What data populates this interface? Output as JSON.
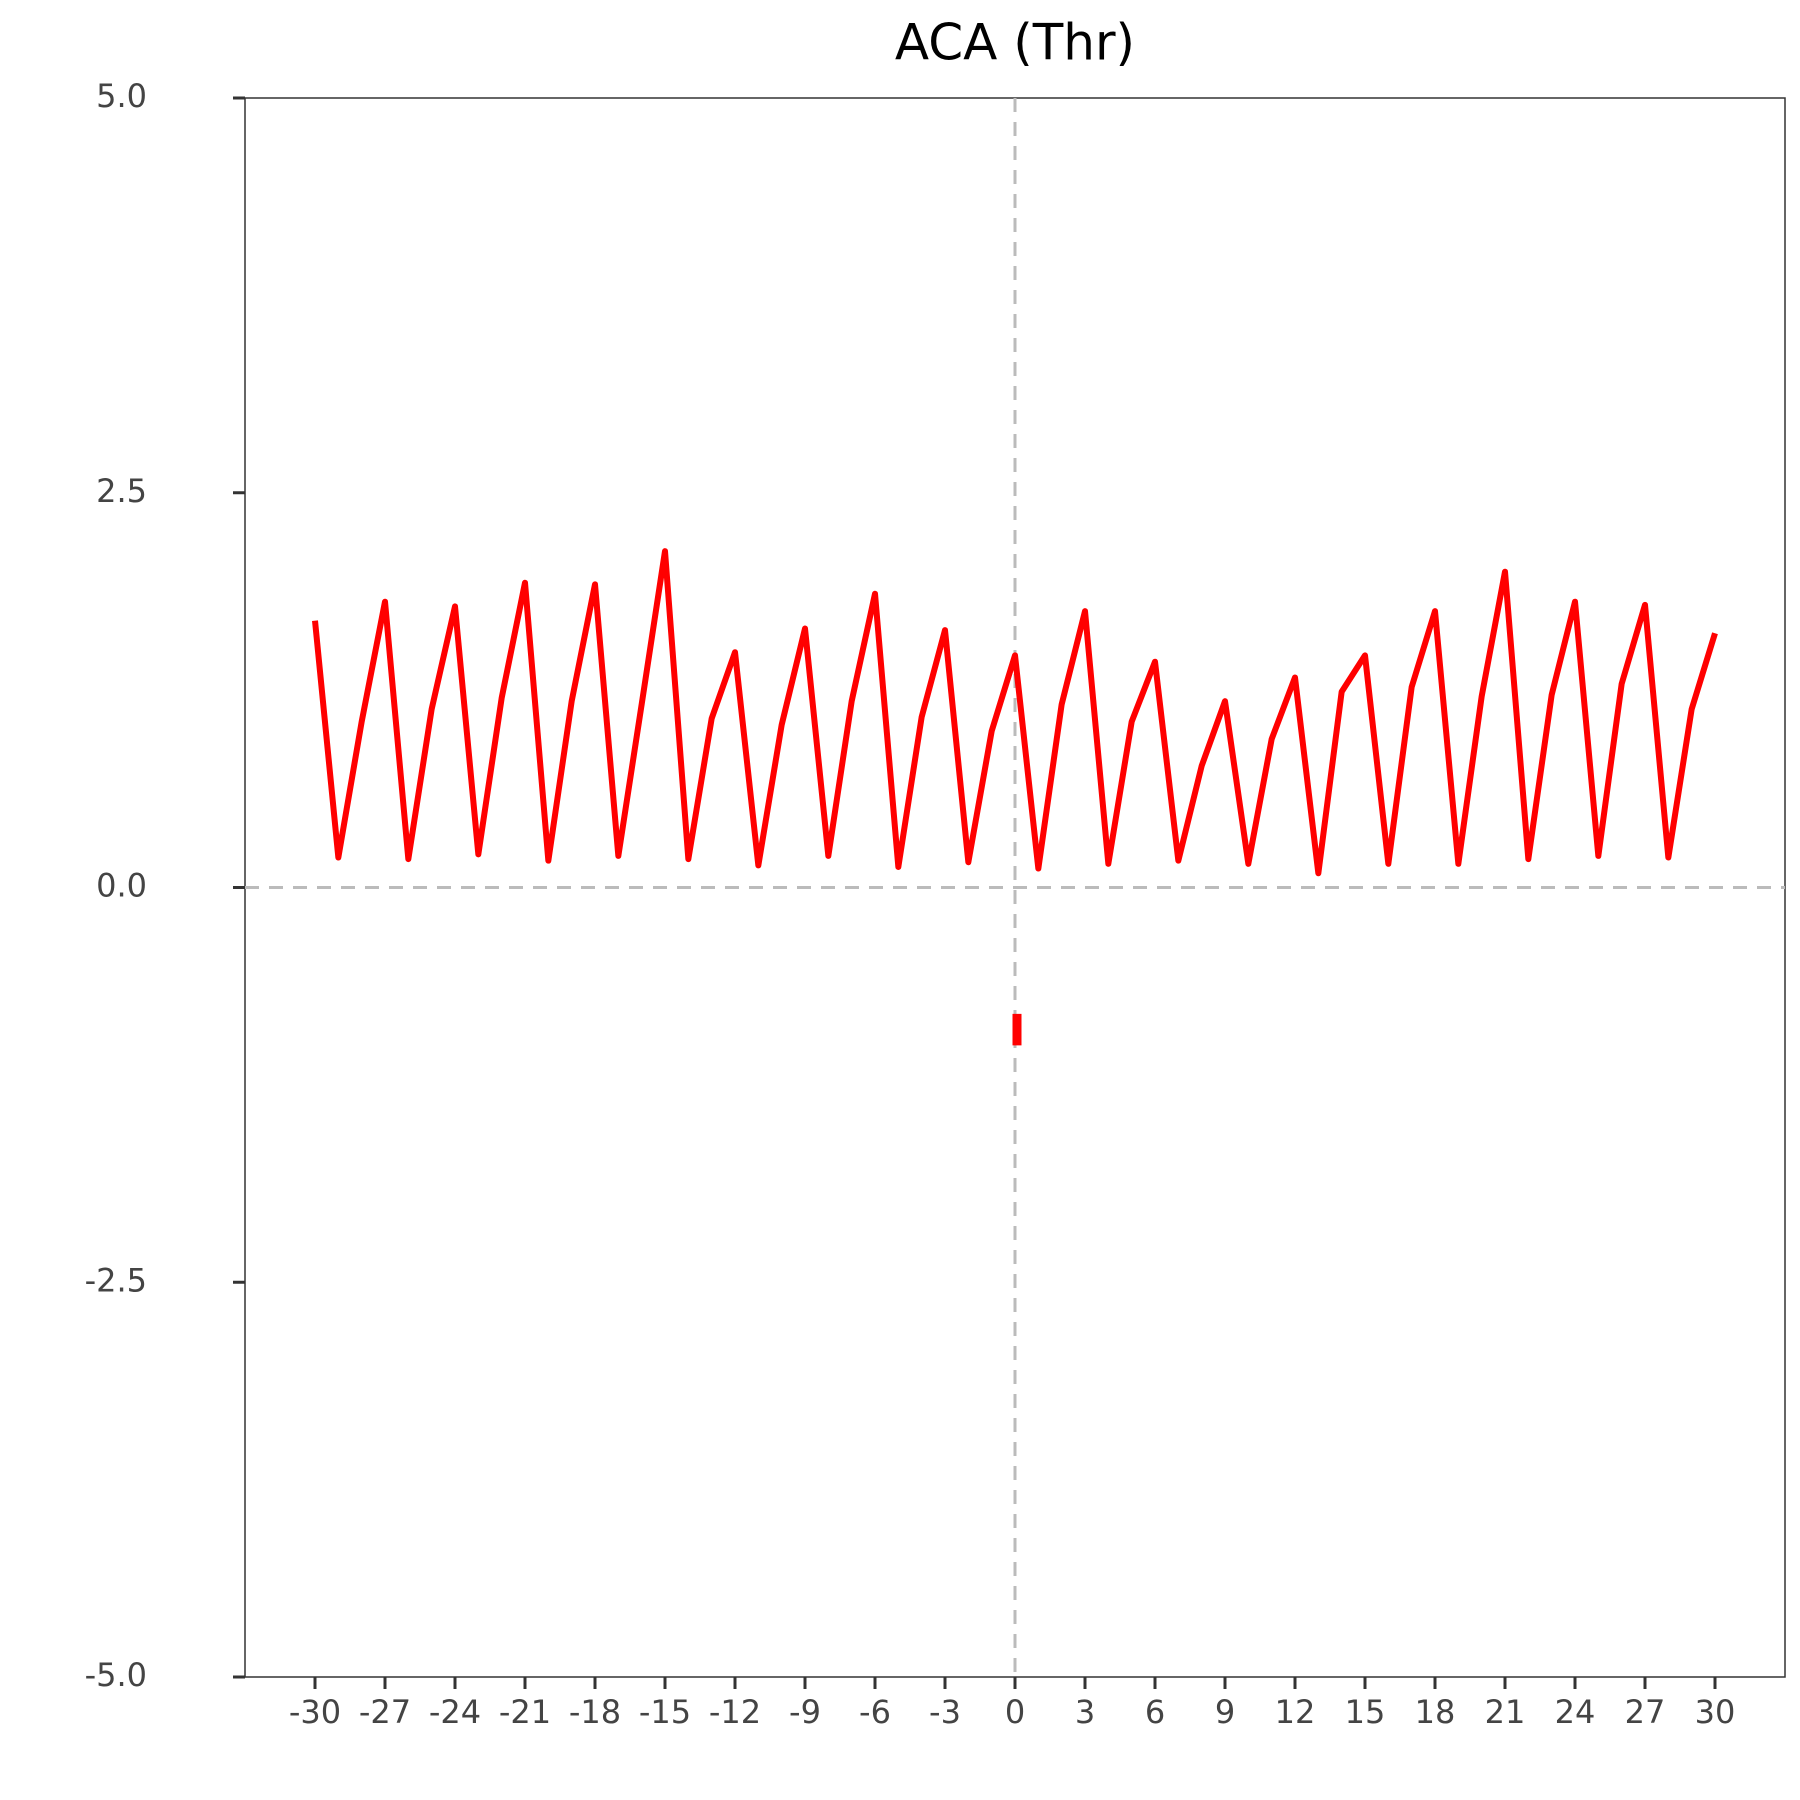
{
  "chart_data": {
    "type": "line",
    "title": "ACA (Thr)",
    "x": [
      -30,
      -29,
      -28,
      -27,
      -26,
      -25,
      -24,
      -23,
      -22,
      -21,
      -20,
      -19,
      -18,
      -17,
      -16,
      -15,
      -14,
      -13,
      -12,
      -11,
      -10,
      -9,
      -8,
      -7,
      -6,
      -5,
      -4,
      -3,
      -2,
      -1,
      0,
      1,
      2,
      3,
      4,
      5,
      6,
      7,
      8,
      9,
      10,
      11,
      12,
      13,
      14,
      15,
      16,
      17,
      18,
      19,
      20,
      21,
      22,
      23,
      24,
      25,
      26,
      27,
      28,
      29,
      30
    ],
    "series": [
      {
        "color": "#ff0000",
        "values": [
          1.69,
          0.19,
          1.05,
          1.81,
          0.18,
          1.13,
          1.78,
          0.21,
          1.2,
          1.93,
          0.17,
          1.18,
          1.92,
          0.2,
          1.16,
          2.13,
          0.18,
          1.07,
          1.49,
          0.14,
          1.03,
          1.64,
          0.2,
          1.18,
          1.86,
          0.13,
          1.08,
          1.63,
          0.16,
          0.99,
          1.47,
          0.12,
          1.16,
          1.75,
          0.15,
          1.05,
          1.43,
          0.17,
          0.77,
          1.18,
          0.15,
          0.94,
          1.33,
          0.09,
          1.24,
          1.47,
          0.15,
          1.27,
          1.75,
          0.15,
          1.21,
          2.0,
          0.18,
          1.22,
          1.81,
          0.2,
          1.29,
          1.79,
          0.19,
          1.13,
          1.61
        ]
      }
    ],
    "segment_x": [
      0,
      0
    ],
    "segment_y": [
      -0.8,
      -1.0
    ],
    "hline": 0,
    "vline": 0,
    "xlim": [
      -33,
      33
    ],
    "ylim": [
      -5,
      5
    ],
    "xticks": [
      -30,
      -27,
      -24,
      -21,
      -18,
      -15,
      -12,
      -9,
      -6,
      -3,
      0,
      3,
      6,
      9,
      12,
      15,
      18,
      21,
      24,
      27,
      30
    ],
    "yticks": [
      {
        "value": -5,
        "label": "-5.0"
      },
      -2.5,
      {
        "value": 0,
        "label": "0.0"
      },
      2.5,
      {
        "value": 5,
        "label": "5.0"
      }
    ]
  }
}
